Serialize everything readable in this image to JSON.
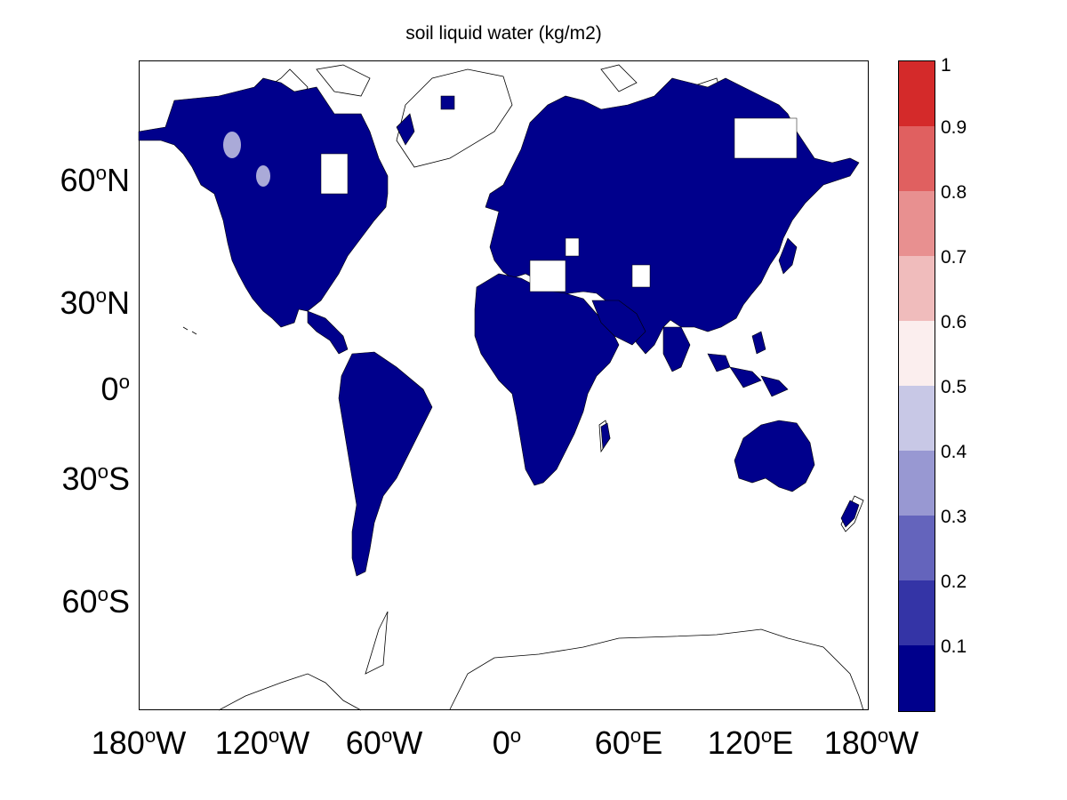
{
  "title": "soil liquid water (kg/m2)",
  "lat_labels": [
    {
      "deg": "60",
      "hemi": "N"
    },
    {
      "deg": "30",
      "hemi": "N"
    },
    {
      "deg": "0",
      "hemi": ""
    },
    {
      "deg": "30",
      "hemi": "S"
    },
    {
      "deg": "60",
      "hemi": "S"
    }
  ],
  "lon_labels": [
    {
      "deg": "180",
      "dir": "W"
    },
    {
      "deg": "120",
      "dir": "W"
    },
    {
      "deg": "60",
      "dir": "W"
    },
    {
      "deg": "0",
      "dir": ""
    },
    {
      "deg": "60",
      "dir": "E"
    },
    {
      "deg": "120",
      "dir": "E"
    },
    {
      "deg": "180",
      "dir": "W"
    }
  ],
  "colorbar": {
    "labels": [
      "1",
      "0.9",
      "0.8",
      "0.7",
      "0.6",
      "0.5",
      "0.4",
      "0.3",
      "0.2",
      "0.1"
    ],
    "colors": [
      "#d42a2a",
      "#e06060",
      "#e89090",
      "#f0bcbc",
      "#fbeeee",
      "#c8c8e6",
      "#9898d2",
      "#6464bc",
      "#3434a6",
      "#00008c"
    ]
  },
  "colors": {
    "land_fill": "#00008c",
    "coastline": "#000000",
    "background": "#ffffff"
  }
}
